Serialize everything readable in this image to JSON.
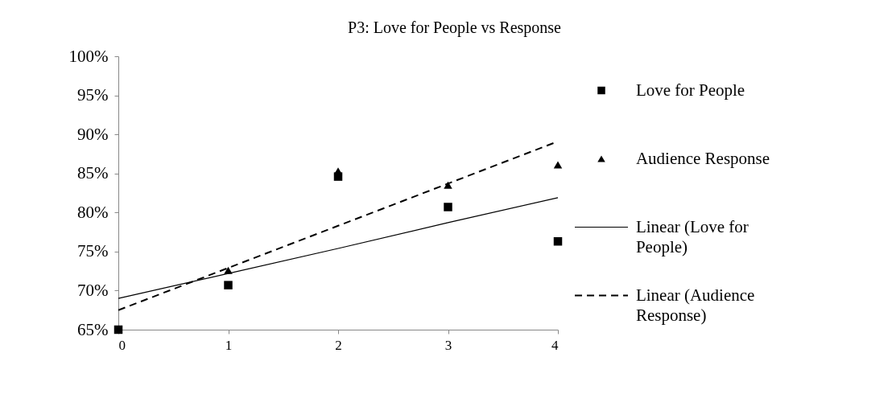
{
  "chart_data": {
    "type": "scatter",
    "title": "P3: Love for People vs Response",
    "x": [
      0,
      1,
      2,
      3,
      4
    ],
    "xlim": [
      0,
      4
    ],
    "xticks": [
      0,
      1,
      2,
      3,
      4
    ],
    "ylim": [
      65,
      100
    ],
    "yticks": [
      {
        "value": 65,
        "label": "65%"
      },
      {
        "value": 70,
        "label": "70%"
      },
      {
        "value": 75,
        "label": "75%"
      },
      {
        "value": 80,
        "label": "80%"
      },
      {
        "value": 85,
        "label": "85%"
      },
      {
        "value": 90,
        "label": "90%"
      },
      {
        "value": 95,
        "label": "95%"
      },
      {
        "value": 100,
        "label": "100%"
      }
    ],
    "grid": false,
    "legend": "right",
    "series": [
      {
        "name": "Love for People",
        "type": "scatter",
        "marker": "square",
        "color": "#000000",
        "values": [
          65,
          70.7,
          84.6,
          80.7,
          76.3
        ]
      },
      {
        "name": "Audience Response",
        "type": "scatter",
        "marker": "triangle",
        "color": "#000000",
        "values": [
          null,
          72.6,
          85.3,
          83.5,
          86.1
        ]
      },
      {
        "name": "Linear (Love for People)",
        "type": "line",
        "line_style": "solid",
        "color": "#000000",
        "values": [
          69.0,
          72.2,
          75.4,
          78.7,
          81.9
        ]
      },
      {
        "name": "Linear (Audience Response)",
        "type": "line",
        "line_style": "dashed",
        "color": "#000000",
        "values": [
          67.5,
          72.9,
          78.3,
          83.7,
          89.1
        ]
      }
    ]
  }
}
